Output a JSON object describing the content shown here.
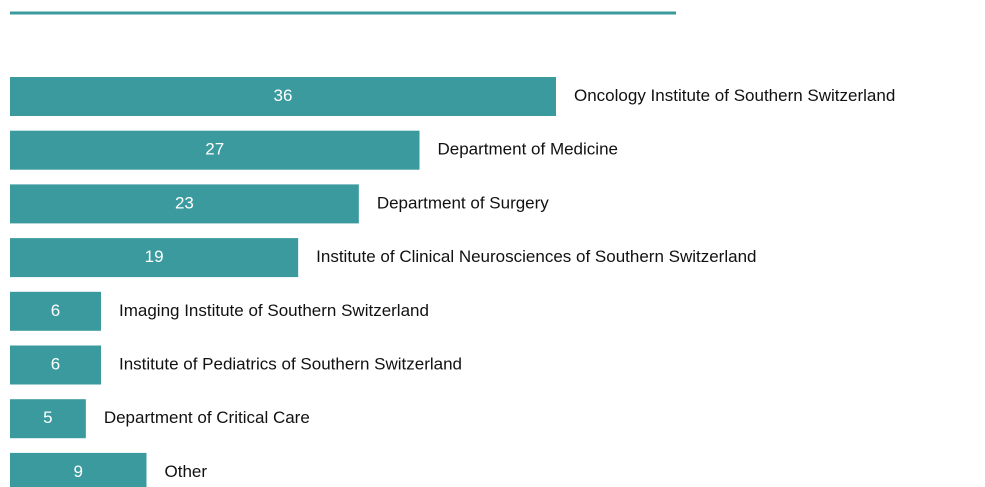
{
  "chart_data": {
    "type": "bar",
    "orientation": "horizontal",
    "color": "#3b9a9e",
    "categories": [
      "Oncology Institute of Southern Switzerland",
      "Department of Medicine",
      "Department of Surgery",
      "Institute of Clinical Neurosciences of Southern Switzerland",
      "Imaging Institute of Southern Switzerland",
      "Institute of Pediatrics of Southern Switzerland",
      "Department of Critical Care",
      "Other"
    ],
    "values": [
      36,
      27,
      23,
      19,
      6,
      6,
      5,
      9
    ]
  }
}
